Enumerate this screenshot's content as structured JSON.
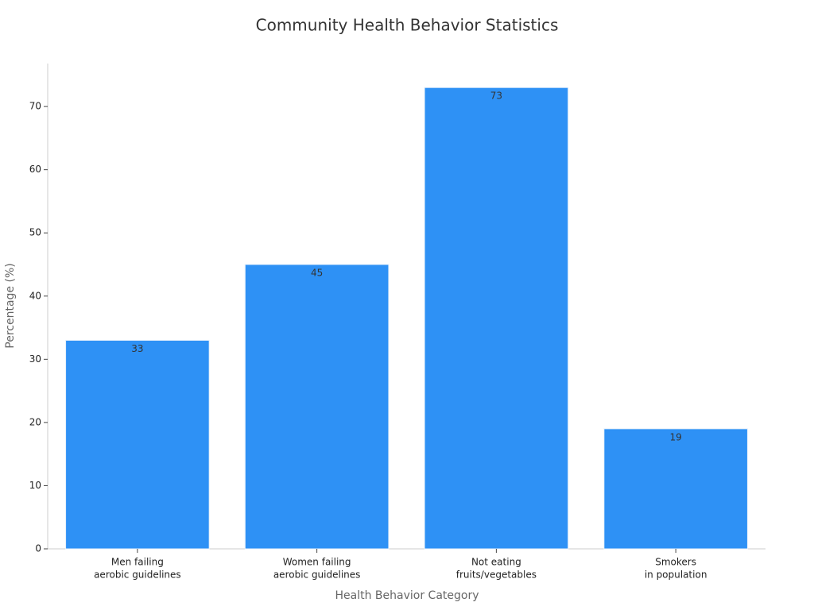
{
  "chart_data": {
    "type": "bar",
    "title": "Community Health Behavior Statistics",
    "x_label": "Health Behavior Category",
    "y_label": "Percentage (%)",
    "categories": [
      [
        "Men failing",
        "aerobic guidelines"
      ],
      [
        "Women failing",
        "aerobic guidelines"
      ],
      [
        "Not eating",
        "fruits/vegetables"
      ],
      [
        "Smokers",
        "in population"
      ]
    ],
    "values": [
      33,
      45,
      73,
      19
    ],
    "color": "#2e91f5",
    "ylim": [
      0,
      76.8
    ],
    "yticks": [
      0,
      10,
      20,
      30,
      40,
      50,
      60,
      70
    ],
    "grid": false
  }
}
